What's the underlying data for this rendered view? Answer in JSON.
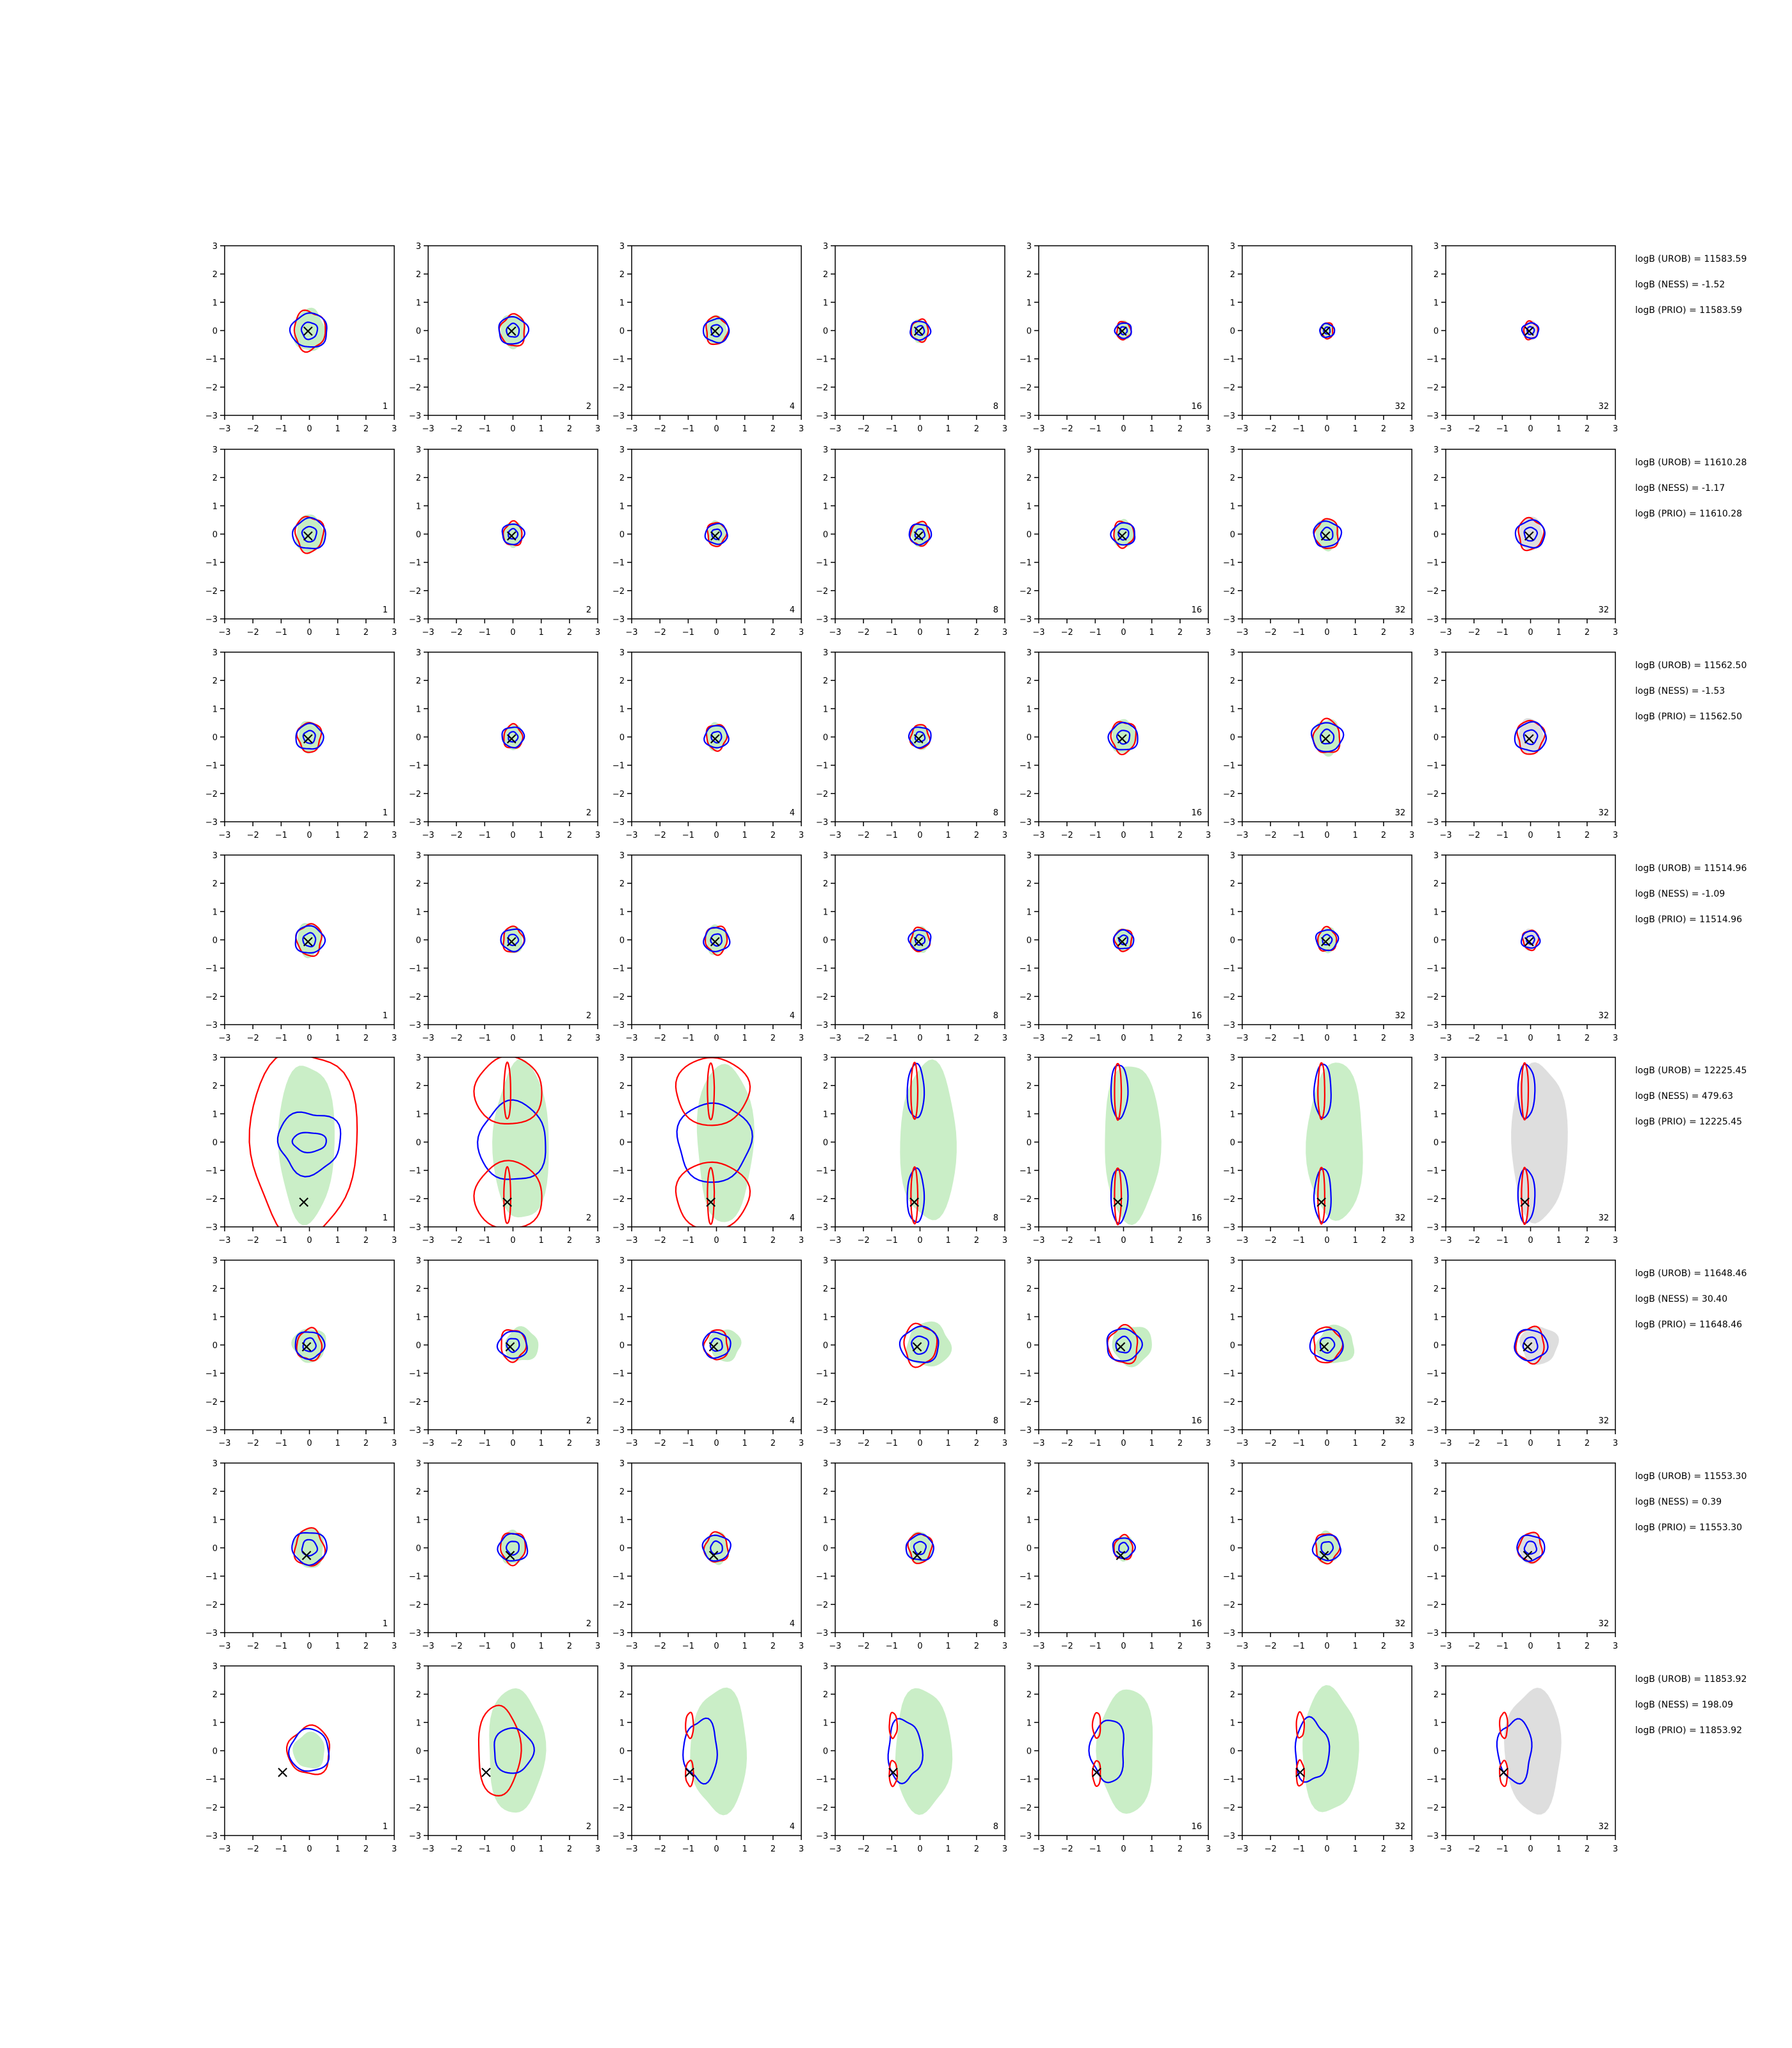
{
  "figure": {
    "background": "#ffffff",
    "colors": {
      "blue_contour": "#0000ff",
      "red_contour": "#ff0000",
      "green_fill": "#b8e8b4",
      "grey_fill": "#c8c8c8",
      "marker": "#000000",
      "axis": "#000000"
    }
  },
  "chart_data": {
    "type": "contour-grid",
    "rows": 8,
    "columns": 7,
    "xlim": [
      -3,
      3
    ],
    "ylim": [
      -3,
      3
    ],
    "xticks": [
      -3,
      -2,
      -1,
      0,
      1,
      2,
      3
    ],
    "yticks": [
      -3,
      -2,
      -1,
      0,
      1,
      2,
      3
    ],
    "column_labels": [
      "1",
      "2",
      "4",
      "8",
      "16",
      "32",
      "32"
    ],
    "marker_symbol": "×",
    "rows_data": [
      {
        "annotations": [
          "logB (UROB) = 11583.59",
          "logB (NESS) = -1.52",
          "logB (PRIO) = 11583.59"
        ],
        "true_point": [
          -0.05,
          0.0
        ],
        "kind": "compact",
        "scales": [
          1.0,
          0.8,
          0.7,
          0.55,
          0.45,
          0.4,
          0.45
        ]
      },
      {
        "annotations": [
          "logB (UROB) = 11610.28",
          "logB (NESS) = -1.17",
          "logB (PRIO) = 11610.28"
        ],
        "true_point": [
          -0.05,
          -0.05
        ],
        "kind": "compact",
        "scales": [
          0.9,
          0.6,
          0.6,
          0.6,
          0.65,
          0.75,
          0.8
        ]
      },
      {
        "annotations": [
          "logB (UROB) = 11562.50",
          "logB (NESS) = -1.53",
          "logB (PRIO) = 11562.50"
        ],
        "true_point": [
          -0.05,
          -0.05
        ],
        "kind": "compact",
        "scales": [
          0.75,
          0.6,
          0.65,
          0.6,
          0.8,
          0.85,
          0.85
        ]
      },
      {
        "annotations": [
          "logB (UROB) = 11514.96",
          "logB (NESS) = -1.09",
          "logB (PRIO) = 11514.96"
        ],
        "true_point": [
          -0.05,
          -0.05
        ],
        "kind": "compact",
        "scales": [
          0.8,
          0.65,
          0.7,
          0.6,
          0.55,
          0.6,
          0.5
        ]
      },
      {
        "annotations": [
          "logB (UROB) = 12225.45",
          "logB (NESS) = 479.63",
          "logB (PRIO) = 12225.45"
        ],
        "true_point": [
          -0.2,
          -2.1
        ],
        "kind": "bimodal-vertical",
        "scales": [
          1,
          1,
          1,
          1,
          1,
          1,
          1
        ]
      },
      {
        "annotations": [
          "logB (UROB) = 11648.46",
          "logB (NESS) = 30.40",
          "logB (PRIO) = 11648.46"
        ],
        "true_point": [
          -0.1,
          -0.05
        ],
        "kind": "compact-wide",
        "scales": [
          0.8,
          0.8,
          0.75,
          1.05,
          0.95,
          0.9,
          0.9
        ]
      },
      {
        "annotations": [
          "logB (UROB) = 11553.30",
          "logB (NESS) = 0.39",
          "logB (PRIO) = 11553.30"
        ],
        "true_point": [
          -0.1,
          -0.25
        ],
        "kind": "compact",
        "scales": [
          0.95,
          0.8,
          0.75,
          0.75,
          0.6,
          0.75,
          0.75
        ]
      },
      {
        "annotations": [
          "logB (UROB) = 11853.92",
          "logB (NESS) = 198.09",
          "logB (PRIO) = 11853.92"
        ],
        "true_point": [
          -0.95,
          -0.75
        ],
        "kind": "shifted-left",
        "scales": [
          0.8,
          1,
          1,
          1,
          1,
          1,
          1
        ]
      }
    ]
  }
}
